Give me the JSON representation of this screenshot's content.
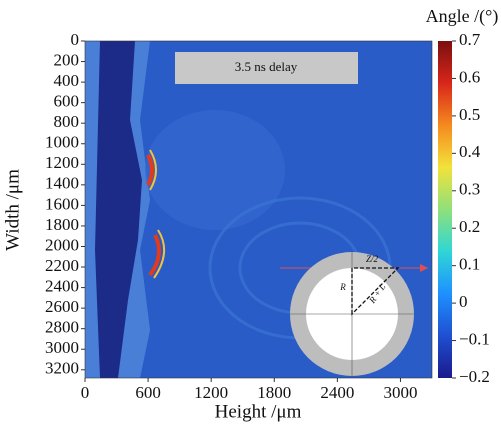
{
  "chart_data": {
    "type": "image",
    "xlabel": "Height /μm",
    "ylabel": "Width /μm",
    "xlim": [
      0,
      3300
    ],
    "xticks": [
      0,
      600,
      1200,
      1800,
      2400,
      3000
    ],
    "ylim": [
      0,
      3280
    ],
    "yticks": [
      0,
      200,
      400,
      600,
      800,
      1000,
      1200,
      1400,
      1600,
      1800,
      2000,
      2200,
      2400,
      2600,
      2800,
      3000,
      3200
    ],
    "y_inverted": true,
    "annotation": "3.5 ns delay",
    "inset_labels": [
      "Z/2",
      "R",
      "R + L"
    ],
    "colorbar": {
      "label": "Angle /(°)",
      "lim": [
        -0.2,
        0.7
      ],
      "ticks": [
        {
          "value": -0.2,
          "label": "−0.2"
        },
        {
          "value": -0.1,
          "label": "−0.1"
        },
        0,
        0.1,
        0.2,
        0.3,
        0.4,
        0.5,
        0.6,
        0.7
      ],
      "colormap": [
        "#1a1a8c",
        "#1f4fd0",
        "#1e90ff",
        "#2fd6d6",
        "#8fe07a",
        "#f2e23a",
        "#f58a1f",
        "#d8261a",
        "#7a0f0f"
      ]
    }
  }
}
